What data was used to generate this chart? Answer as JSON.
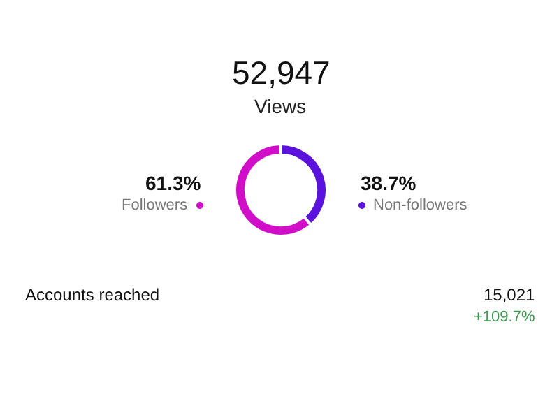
{
  "chart_data": {
    "type": "donut",
    "title": "52,947",
    "subtitle": "Views",
    "categories": [
      "Non-followers",
      "Followers"
    ],
    "values": [
      38.7,
      61.3
    ],
    "value_labels": [
      "38.7%",
      "61.3%"
    ],
    "colors": [
      "#5a12dc",
      "#d10fc8"
    ],
    "legend": "bottom right",
    "annotations": [
      "Accounts reached",
      "15,021",
      "+109.7%"
    ]
  }
}
